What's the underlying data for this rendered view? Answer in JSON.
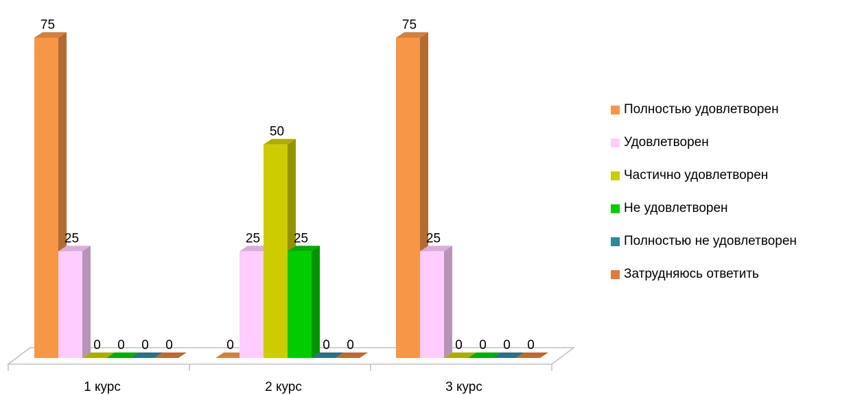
{
  "chart_data": {
    "type": "bar",
    "title": "",
    "xlabel": "",
    "ylabel": "",
    "ylim": [
      0,
      75
    ],
    "grid": false,
    "legend_position": "right",
    "style": "3d-clustered-column",
    "categories": [
      "1 курс",
      "2 курс",
      "3 курс"
    ],
    "series": [
      {
        "name": "Полностью удовлетворен",
        "color": "#F79646",
        "values": [
          75,
          0,
          75
        ]
      },
      {
        "name": "Удовлетворен",
        "color": "#FFCCFF",
        "values": [
          25,
          25,
          25
        ]
      },
      {
        "name": "Частично удовлетворен",
        "color": "#CCCC00",
        "values": [
          0,
          50,
          0
        ]
      },
      {
        "name": "Не удовлетворен",
        "color": "#00CC00",
        "values": [
          0,
          25,
          0
        ]
      },
      {
        "name": "Полностью не удовлетворен",
        "color": "#31869B",
        "values": [
          0,
          0,
          0
        ]
      },
      {
        "name": "Затрудняюсь ответить",
        "color": "#E07B39",
        "values": [
          0,
          0,
          0
        ]
      }
    ]
  }
}
